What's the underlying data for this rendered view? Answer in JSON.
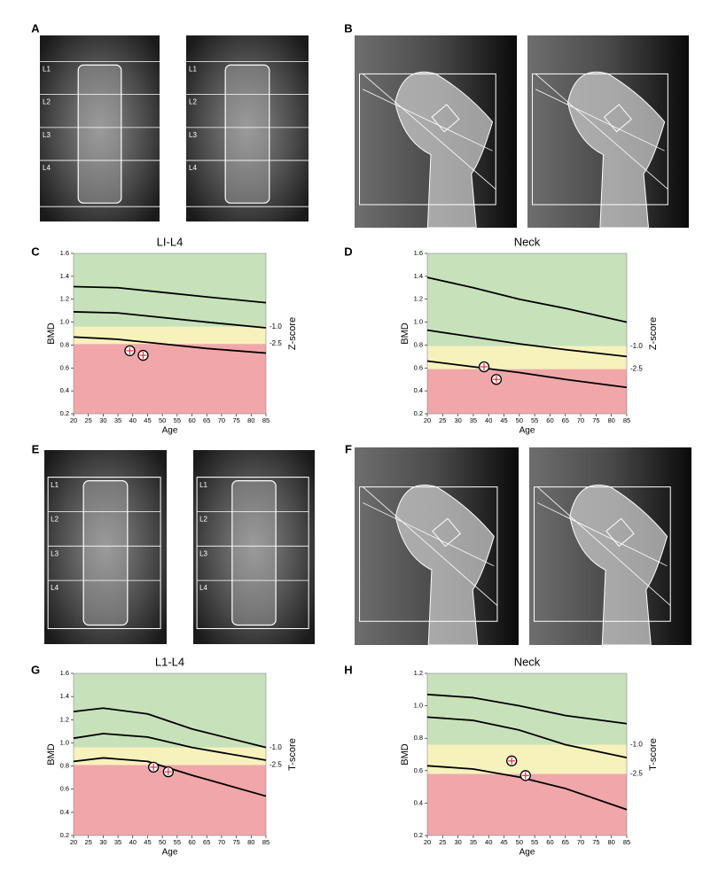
{
  "panels": [
    {
      "letter": "A",
      "images": [
        {
          "labels": [
            "L1",
            "L2",
            "L3",
            "L4"
          ]
        },
        {
          "labels": [
            "L1",
            "L2",
            "L3",
            "L4"
          ]
        }
      ]
    },
    {
      "letter": "B"
    },
    {
      "letter": "C"
    },
    {
      "letter": "D"
    },
    {
      "letter": "E",
      "images": [
        {
          "labels": [
            "L1",
            "L2",
            "L3",
            "L4"
          ]
        },
        {
          "labels": [
            "L1",
            "L2",
            "L3",
            "L4"
          ]
        }
      ]
    },
    {
      "letter": "F"
    },
    {
      "letter": "G"
    },
    {
      "letter": "H"
    }
  ],
  "chart_data": [
    {
      "type": "line",
      "title": "LI-L4",
      "xlabel": "Age",
      "ylabel": "BMD",
      "y2label": "Z-score",
      "xlim": [
        20,
        85
      ],
      "xticks": [
        20,
        25,
        30,
        35,
        40,
        45,
        50,
        55,
        60,
        65,
        70,
        75,
        80,
        85
      ],
      "ylim": [
        0.2,
        1.6
      ],
      "yticks": [
        0.2,
        0.4,
        0.6,
        0.8,
        {
          "value": 1,
          "label": "1.0"
        },
        1.2,
        1.4,
        1.6
      ],
      "bands": [
        {
          "from": 0.2,
          "to": 0.81,
          "color": "#f1a7a9",
          "label": "-2.5"
        },
        {
          "from": 0.81,
          "to": 0.96,
          "color": "#f7f2bc",
          "label": "-1.0"
        },
        {
          "from": 0.96,
          "to": 1.6,
          "color": "#c7e2bb"
        }
      ],
      "series": [
        {
          "color": "#000000",
          "x": [
            20,
            35,
            50,
            65,
            85
          ],
          "values": [
            1.31,
            1.3,
            1.26,
            1.22,
            1.17
          ]
        },
        {
          "color": "#000000",
          "x": [
            20,
            35,
            50,
            65,
            85
          ],
          "values": [
            1.09,
            1.08,
            1.04,
            1.0,
            0.95
          ]
        },
        {
          "color": "#000000",
          "x": [
            20,
            35,
            50,
            65,
            85
          ],
          "values": [
            0.87,
            0.85,
            0.81,
            0.77,
            0.73
          ]
        }
      ],
      "points": {
        "color": "#e0303a",
        "x": [
          39,
          43.5
        ],
        "values": [
          0.75,
          0.71
        ]
      }
    },
    {
      "type": "line",
      "title": "Neck",
      "xlabel": "Age",
      "ylabel": "BMD",
      "y2label": "Z-score",
      "xlim": [
        20,
        85
      ],
      "xticks": [
        20,
        25,
        30,
        35,
        40,
        45,
        50,
        55,
        60,
        65,
        70,
        75,
        80,
        85
      ],
      "ylim": [
        0.2,
        1.6
      ],
      "yticks": [
        0.2,
        0.4,
        0.6,
        0.8,
        {
          "value": 1,
          "label": "1.0"
        },
        1.2,
        1.4,
        1.6
      ],
      "bands": [
        {
          "from": 0.2,
          "to": 0.59,
          "color": "#f1a7a9",
          "label": "-2.5"
        },
        {
          "from": 0.59,
          "to": 0.79,
          "color": "#f7f2bc",
          "label": "-1.0"
        },
        {
          "from": 0.79,
          "to": 1.6,
          "color": "#c7e2bb"
        }
      ],
      "series": [
        {
          "color": "#000000",
          "x": [
            20,
            35,
            50,
            65,
            85
          ],
          "values": [
            1.39,
            1.3,
            1.2,
            1.12,
            1.0
          ]
        },
        {
          "color": "#000000",
          "x": [
            20,
            35,
            50,
            65,
            85
          ],
          "values": [
            0.93,
            0.87,
            0.81,
            0.76,
            0.7
          ]
        },
        {
          "color": "#000000",
          "x": [
            20,
            35,
            50,
            65,
            85
          ],
          "values": [
            0.66,
            0.61,
            0.56,
            0.5,
            0.43
          ]
        }
      ],
      "points": {
        "color": "#e0303a",
        "x": [
          38.5,
          42.5
        ],
        "values": [
          0.61,
          0.5
        ]
      }
    },
    {
      "type": "line",
      "title": "L1-L4",
      "xlabel": "Age",
      "ylabel": "BMD",
      "y2label": "T-score",
      "xlim": [
        20,
        85
      ],
      "xticks": [
        20,
        25,
        30,
        35,
        40,
        45,
        50,
        55,
        60,
        65,
        70,
        75,
        80,
        85
      ],
      "ylim": [
        0.2,
        1.6
      ],
      "yticks": [
        0.2,
        0.4,
        0.6,
        0.8,
        {
          "value": 1,
          "label": "1.0"
        },
        1.2,
        1.4,
        1.6
      ],
      "bands": [
        {
          "from": 0.2,
          "to": 0.81,
          "color": "#f1a7a9",
          "label": "-2.5"
        },
        {
          "from": 0.81,
          "to": 0.96,
          "color": "#f7f2bc",
          "label": "-1.0"
        },
        {
          "from": 0.96,
          "to": 1.6,
          "color": "#c7e2bb"
        }
      ],
      "series": [
        {
          "color": "#000000",
          "x": [
            20,
            30,
            45,
            60,
            85
          ],
          "values": [
            1.27,
            1.3,
            1.25,
            1.12,
            0.96
          ]
        },
        {
          "color": "#000000",
          "x": [
            20,
            30,
            45,
            60,
            85
          ],
          "values": [
            1.04,
            1.08,
            1.05,
            0.96,
            0.85
          ]
        },
        {
          "color": "#000000",
          "x": [
            20,
            30,
            45,
            60,
            85
          ],
          "values": [
            0.84,
            0.87,
            0.84,
            0.72,
            0.54
          ]
        }
      ],
      "points": {
        "color": "#e0303a",
        "x": [
          47,
          52
        ],
        "values": [
          0.79,
          0.75
        ]
      }
    },
    {
      "type": "line",
      "title": "Neck",
      "xlabel": "Age",
      "ylabel": "BMD",
      "y2label": "T-score",
      "xlim": [
        20,
        85
      ],
      "xticks": [
        20,
        25,
        30,
        35,
        40,
        45,
        50,
        55,
        60,
        65,
        70,
        75,
        80,
        85
      ],
      "ylim": [
        0.2,
        1.2
      ],
      "yticks": [
        0.2,
        0.4,
        0.6,
        0.8,
        {
          "value": 1,
          "label": "1.0"
        },
        1.2
      ],
      "bands": [
        {
          "from": 0.2,
          "to": 0.58,
          "color": "#f1a7a9",
          "label": "-2.5"
        },
        {
          "from": 0.58,
          "to": 0.76,
          "color": "#f7f2bc",
          "label": "-1.0"
        },
        {
          "from": 0.76,
          "to": 1.2,
          "color": "#c7e2bb"
        }
      ],
      "series": [
        {
          "color": "#000000",
          "x": [
            20,
            35,
            50,
            65,
            85
          ],
          "values": [
            1.07,
            1.05,
            1.0,
            0.94,
            0.89
          ]
        },
        {
          "color": "#000000",
          "x": [
            20,
            35,
            50,
            65,
            85
          ],
          "values": [
            0.93,
            0.91,
            0.85,
            0.76,
            0.68
          ]
        },
        {
          "color": "#000000",
          "x": [
            20,
            35,
            50,
            65,
            85
          ],
          "values": [
            0.63,
            0.61,
            0.56,
            0.49,
            0.36
          ]
        }
      ],
      "points": {
        "color": "#e0303a",
        "x": [
          47.5,
          52
        ],
        "values": [
          0.66,
          0.57
        ]
      }
    }
  ]
}
